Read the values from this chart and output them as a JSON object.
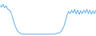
{
  "values": [
    85,
    80,
    88,
    78,
    84,
    75,
    72,
    68,
    55,
    40,
    28,
    18,
    12,
    8,
    6,
    5,
    5,
    5,
    5,
    5,
    5,
    5,
    5,
    5,
    5,
    5,
    5,
    5,
    5,
    5,
    5,
    5,
    5,
    5,
    5,
    5,
    6,
    7,
    8,
    9,
    12,
    18,
    28,
    42,
    58,
    68,
    62,
    72,
    64,
    74,
    62,
    72,
    60,
    70,
    62,
    72,
    64,
    74,
    62,
    72,
    60,
    70,
    62,
    72
  ],
  "line_color": "#4da6e8",
  "background_color": "#ffffff",
  "ylim_min": 0,
  "ylim_max": 100
}
